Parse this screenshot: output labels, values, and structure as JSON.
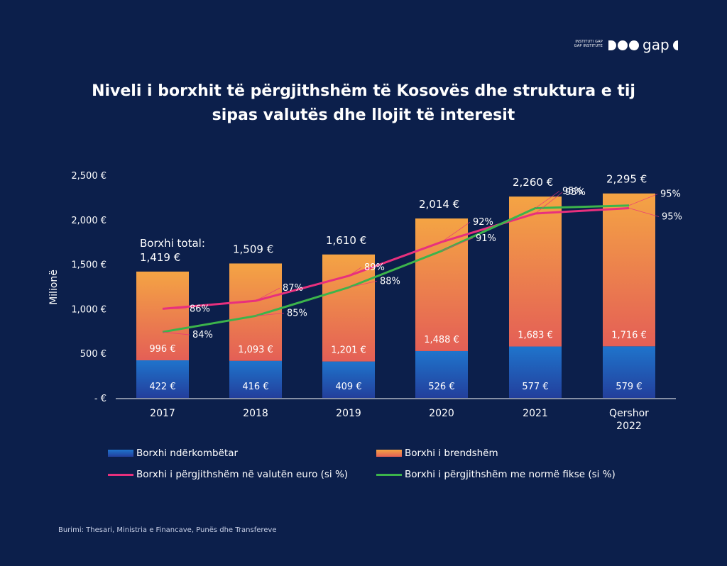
{
  "logo": {
    "line1": "INSTITUTI GAP",
    "line2": "GAP INSTITUTE",
    "wordmark": "gap"
  },
  "title": {
    "line1": "Niveli i borxhit të përgjithshëm të Kosovës dhe struktura e tij",
    "line2": "sipas valutës dhe llojit të interesit"
  },
  "source": "Burimi: Thesari, Ministria e Financave, Punës dhe Transfereve",
  "colors": {
    "background": "#0c1f4b",
    "intl_bar": "#1f6fc4",
    "dom_bar": "#f2963f",
    "euro_line": "#e8307d",
    "fixed_line": "#3cb44b"
  },
  "chart_data": {
    "type": "bar",
    "stacked": true,
    "categories": [
      "2017",
      "2018",
      "2019",
      "2020",
      "2021",
      "Qershor\n2022"
    ],
    "ylabel": "Milionë",
    "ylim": [
      0,
      2500
    ],
    "yticks": [
      "-  €",
      "500 €",
      "1,000 €",
      "1,500 €",
      "2,000 €",
      "2,500 €"
    ],
    "series": [
      {
        "name": "Borxhi ndërkombëtar",
        "kind": "bar",
        "values": [
          422,
          416,
          409,
          526,
          577,
          579
        ],
        "labels": [
          "422 €",
          "416 €",
          "409 €",
          "526 €",
          "577 €",
          "579 €"
        ]
      },
      {
        "name": "Borxhi i brendshëm",
        "kind": "bar",
        "values": [
          996,
          1093,
          1201,
          1488,
          1683,
          1716
        ],
        "labels": [
          "996 €",
          "1,093 €",
          "1,201 €",
          "1,488 €",
          "1,683 €",
          "1,716 €"
        ]
      },
      {
        "name": "Borxhi i përgjithshëm në valutën euro (si %)",
        "kind": "line",
        "values": [
          86,
          87,
          89,
          92,
          95,
          95
        ],
        "labels": [
          "86%",
          "87%",
          "89%",
          "92%",
          "95%",
          "95%"
        ],
        "plot_y": [
          1000,
          1090,
          1370,
          1750,
          2070,
          2130
        ]
      },
      {
        "name": "Borxhi i përgjithshëm me normë fikse (si %)",
        "kind": "line",
        "values": [
          84,
          85,
          88,
          91,
          95,
          95
        ],
        "labels": [
          "84%",
          "85%",
          "88%",
          "91%",
          "95%",
          "95%"
        ],
        "plot_y": [
          740,
          920,
          1240,
          1650,
          2130,
          2160
        ]
      }
    ],
    "totals": [
      "1,419  €",
      "1,509 €",
      "1,610  €",
      "2,014 €",
      "2,260 €",
      "2,295 €"
    ],
    "total_prefix": "Borxhi total:",
    "grid": false,
    "legend_position": "bottom"
  }
}
